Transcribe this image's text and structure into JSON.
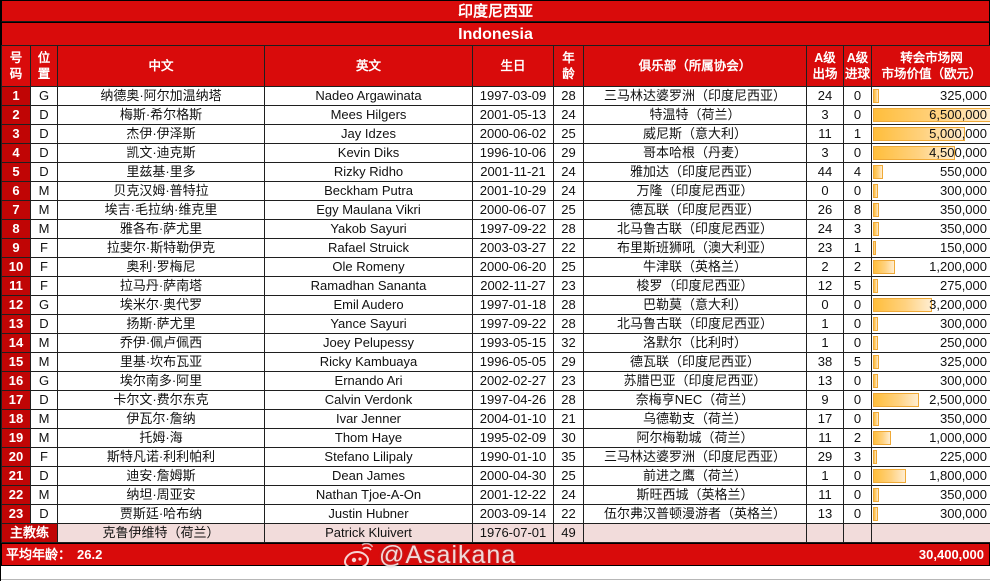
{
  "title": {
    "cn": "印度尼西亚",
    "en": "Indonesia"
  },
  "columns": {
    "number": "号\n码",
    "position": "位\n置",
    "name_cn": "中文",
    "name_en": "英文",
    "birthday": "生日",
    "age": "年\n龄",
    "club": "俱乐部（所属协会）",
    "caps": "A级\n出场",
    "goals": "A级\n进球",
    "value": "转会市场网\n市场价值（欧元）"
  },
  "players": [
    {
      "no": "1",
      "pos": "G",
      "cn": "纳德奥·阿尔加温纳塔",
      "en": "Nadeo Argawinata",
      "dob": "1997-03-09",
      "age": "28",
      "club": "三马林达婆罗洲（印度尼西亚）",
      "caps": "24",
      "goals": "0",
      "value": "325,000"
    },
    {
      "no": "2",
      "pos": "D",
      "cn": "梅斯·希尔格斯",
      "en": "Mees Hilgers",
      "dob": "2001-05-13",
      "age": "24",
      "club": "特温特（荷兰）",
      "caps": "3",
      "goals": "0",
      "value": "6,500,000"
    },
    {
      "no": "3",
      "pos": "D",
      "cn": "杰伊·伊泽斯",
      "en": "Jay Idzes",
      "dob": "2000-06-02",
      "age": "25",
      "club": "威尼斯（意大利）",
      "caps": "11",
      "goals": "1",
      "value": "5,000,000"
    },
    {
      "no": "4",
      "pos": "D",
      "cn": "凯文·迪克斯",
      "en": "Kevin Diks",
      "dob": "1996-10-06",
      "age": "29",
      "club": "哥本哈根（丹麦）",
      "caps": "3",
      "goals": "0",
      "value": "4,500,000"
    },
    {
      "no": "5",
      "pos": "D",
      "cn": "里兹基·里多",
      "en": "Rizky Ridho",
      "dob": "2001-11-21",
      "age": "24",
      "club": "雅加达（印度尼西亚）",
      "caps": "44",
      "goals": "4",
      "value": "550,000"
    },
    {
      "no": "6",
      "pos": "M",
      "cn": "贝克汉姆·普特拉",
      "en": "Beckham Putra",
      "dob": "2001-10-29",
      "age": "24",
      "club": "万隆（印度尼西亚）",
      "caps": "0",
      "goals": "0",
      "value": "300,000"
    },
    {
      "no": "7",
      "pos": "M",
      "cn": "埃吉·毛拉纳·维克里",
      "en": "Egy Maulana Vikri",
      "dob": "2000-06-07",
      "age": "25",
      "club": "德瓦联（印度尼西亚）",
      "caps": "26",
      "goals": "8",
      "value": "350,000"
    },
    {
      "no": "8",
      "pos": "M",
      "cn": "雅各布·萨尤里",
      "en": "Yakob Sayuri",
      "dob": "1997-09-22",
      "age": "28",
      "club": "北马鲁古联（印度尼西亚）",
      "caps": "24",
      "goals": "3",
      "value": "350,000"
    },
    {
      "no": "9",
      "pos": "F",
      "cn": "拉斐尔·斯特勒伊克",
      "en": "Rafael Struick",
      "dob": "2003-03-27",
      "age": "22",
      "club": "布里斯班狮吼（澳大利亚）",
      "caps": "23",
      "goals": "1",
      "value": "150,000"
    },
    {
      "no": "10",
      "pos": "F",
      "cn": "奥利·罗梅尼",
      "en": "Ole Romeny",
      "dob": "2000-06-20",
      "age": "25",
      "club": "牛津联（英格兰）",
      "caps": "2",
      "goals": "2",
      "value": "1,200,000"
    },
    {
      "no": "11",
      "pos": "F",
      "cn": "拉马丹·萨南塔",
      "en": "Ramadhan Sananta",
      "dob": "2002-11-27",
      "age": "23",
      "club": "梭罗（印度尼西亚）",
      "caps": "12",
      "goals": "5",
      "value": "275,000"
    },
    {
      "no": "12",
      "pos": "G",
      "cn": "埃米尔·奥代罗",
      "en": "Emil Audero",
      "dob": "1997-01-18",
      "age": "28",
      "club": "巴勒莫（意大利）",
      "caps": "0",
      "goals": "0",
      "value": "3,200,000"
    },
    {
      "no": "13",
      "pos": "D",
      "cn": "扬斯·萨尤里",
      "en": "Yance Sayuri",
      "dob": "1997-09-22",
      "age": "28",
      "club": "北马鲁古联（印度尼西亚）",
      "caps": "1",
      "goals": "0",
      "value": "300,000"
    },
    {
      "no": "14",
      "pos": "M",
      "cn": "乔伊·佩卢佩西",
      "en": "Joey Pelupessy",
      "dob": "1993-05-15",
      "age": "32",
      "club": "洛默尔（比利时）",
      "caps": "1",
      "goals": "0",
      "value": "250,000"
    },
    {
      "no": "15",
      "pos": "M",
      "cn": "里基·坎布瓦亚",
      "en": "Ricky Kambuaya",
      "dob": "1996-05-05",
      "age": "29",
      "club": "德瓦联（印度尼西亚）",
      "caps": "38",
      "goals": "5",
      "value": "325,000"
    },
    {
      "no": "16",
      "pos": "G",
      "cn": "埃尔南多·阿里",
      "en": "Ernando Ari",
      "dob": "2002-02-27",
      "age": "23",
      "club": "苏腊巴亚（印度尼西亚）",
      "caps": "13",
      "goals": "0",
      "value": "300,000"
    },
    {
      "no": "17",
      "pos": "D",
      "cn": "卡尔文·费尔东克",
      "en": "Calvin Verdonk",
      "dob": "1997-04-26",
      "age": "28",
      "club": "奈梅亨NEC（荷兰）",
      "caps": "9",
      "goals": "0",
      "value": "2,500,000"
    },
    {
      "no": "18",
      "pos": "M",
      "cn": "伊瓦尔·詹纳",
      "en": "Ivar Jenner",
      "dob": "2004-01-10",
      "age": "21",
      "club": "乌德勒支（荷兰）",
      "caps": "17",
      "goals": "0",
      "value": "350,000"
    },
    {
      "no": "19",
      "pos": "M",
      "cn": "托姆·海",
      "en": "Thom Haye",
      "dob": "1995-02-09",
      "age": "30",
      "club": "阿尔梅勒城（荷兰）",
      "caps": "11",
      "goals": "2",
      "value": "1,000,000"
    },
    {
      "no": "20",
      "pos": "F",
      "cn": "斯特凡诺·利利帕利",
      "en": "Stefano Lilipaly",
      "dob": "1990-01-10",
      "age": "35",
      "club": "三马林达婆罗洲（印度尼西亚）",
      "caps": "29",
      "goals": "3",
      "value": "225,000"
    },
    {
      "no": "21",
      "pos": "D",
      "cn": "迪安·詹姆斯",
      "en": "Dean James",
      "dob": "2000-04-30",
      "age": "25",
      "club": "前进之鹰（荷兰）",
      "caps": "1",
      "goals": "0",
      "value": "1,800,000"
    },
    {
      "no": "22",
      "pos": "M",
      "cn": "纳坦·周亚安",
      "en": "Nathan Tjoe-A-On",
      "dob": "2001-12-22",
      "age": "24",
      "club": "斯旺西城（英格兰）",
      "caps": "11",
      "goals": "0",
      "value": "350,000"
    },
    {
      "no": "23",
      "pos": "D",
      "cn": "贾斯廷·哈布纳",
      "en": "Justin Hubner",
      "dob": "2003-09-14",
      "age": "22",
      "club": "伍尔弗汉普顿漫游者（英格兰）",
      "caps": "13",
      "goals": "0",
      "value": "300,000"
    }
  ],
  "coach": {
    "label": "主教练",
    "cn": "克鲁伊维特（荷兰）",
    "en": "Patrick Kluivert",
    "dob": "1976-07-01",
    "age": "49",
    "club": "",
    "caps": "",
    "goals": "",
    "value": ""
  },
  "footer": {
    "avg_label": "平均年龄：",
    "avg_value": "26.2",
    "total_value": "30,400,000",
    "watermark": "@Asaikana"
  },
  "colors": {
    "header_red": "#d90b0b",
    "number_red": "#c00505",
    "coach_pink": "#f2dcdb",
    "bar_orange": "#ffbe3c"
  }
}
